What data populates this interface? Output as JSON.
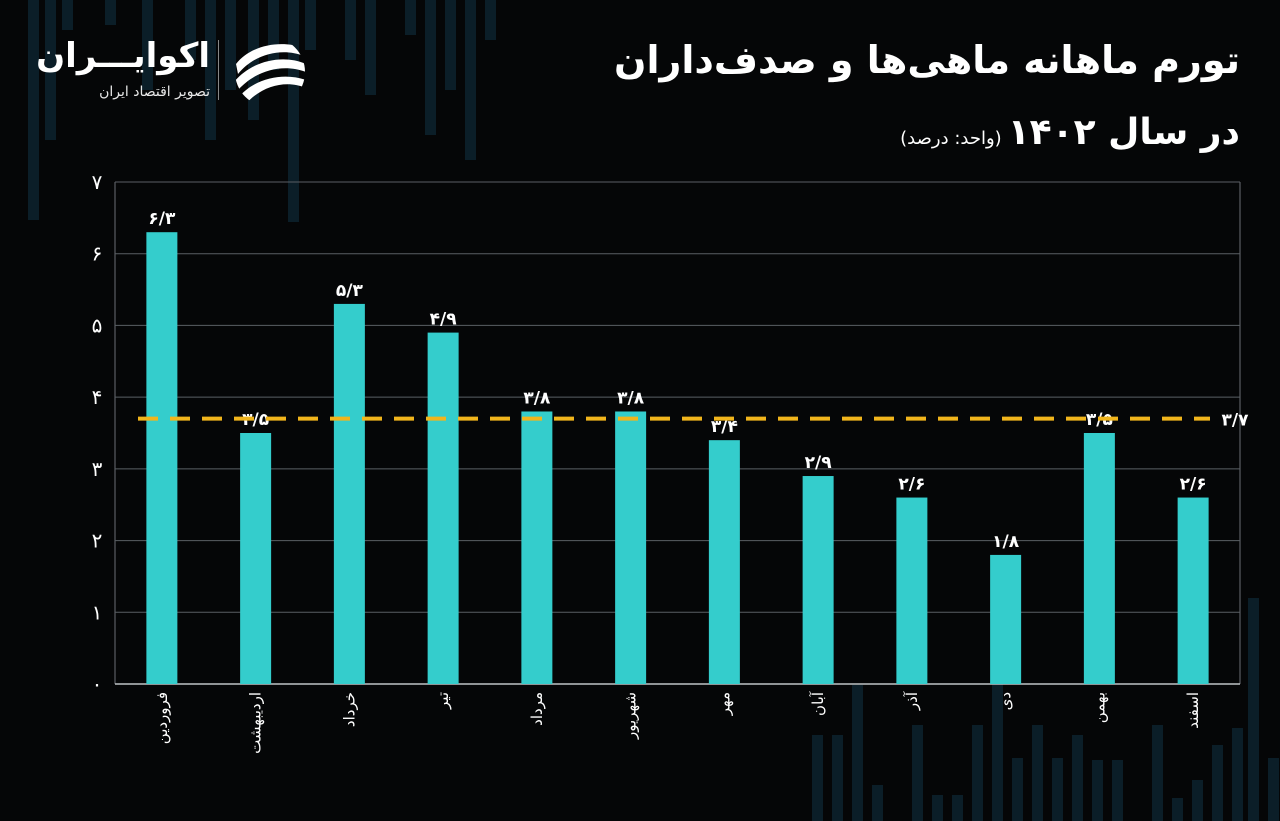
{
  "header": {
    "title": "تورم ماهانه ماهی‌ها و صدف‌داران",
    "subtitle": "در سال ۱۴۰۲",
    "unit": "(واحد: درصد)"
  },
  "brand": {
    "name": "اکوایـــران",
    "tagline": "تصویر اقتصاد ایران",
    "icon": "ecoiran-swoosh-icon"
  },
  "colors": {
    "bar": "#34cdcc",
    "average_line": "#f1b51c",
    "background": "#050607",
    "grid": "#5a5f64"
  },
  "chart_data": {
    "type": "bar",
    "title": "تورم ماهانه ماهی‌ها و صدف‌داران در سال ۱۴۰۲",
    "ylabel": "درصد",
    "xlabel": "",
    "ylim": [
      0,
      7
    ],
    "yticks": [
      0,
      1,
      2,
      3,
      4,
      5,
      6,
      7
    ],
    "ytick_labels": [
      "۰",
      "۱",
      "۲",
      "۳",
      "۴",
      "۵",
      "۶",
      "۷"
    ],
    "grid": true,
    "categories": [
      "فروردین",
      "اردیبهشت",
      "خرداد",
      "تیر",
      "مرداد",
      "شهریور",
      "مهر",
      "آبان",
      "آذر",
      "دی",
      "بهمن",
      "اسفند"
    ],
    "values": [
      6.3,
      3.5,
      5.3,
      4.9,
      3.8,
      3.8,
      3.4,
      2.9,
      2.6,
      1.8,
      3.5,
      2.6
    ],
    "value_labels": [
      "۶/۳",
      "۳/۵",
      "۵/۳",
      "۴/۹",
      "۳/۸",
      "۳/۸",
      "۳/۴",
      "۲/۹",
      "۲/۶",
      "۱/۸",
      "۳/۵",
      "۲/۶"
    ],
    "average": {
      "value": 3.7,
      "label": "۳/۷",
      "style": "dashed"
    }
  }
}
